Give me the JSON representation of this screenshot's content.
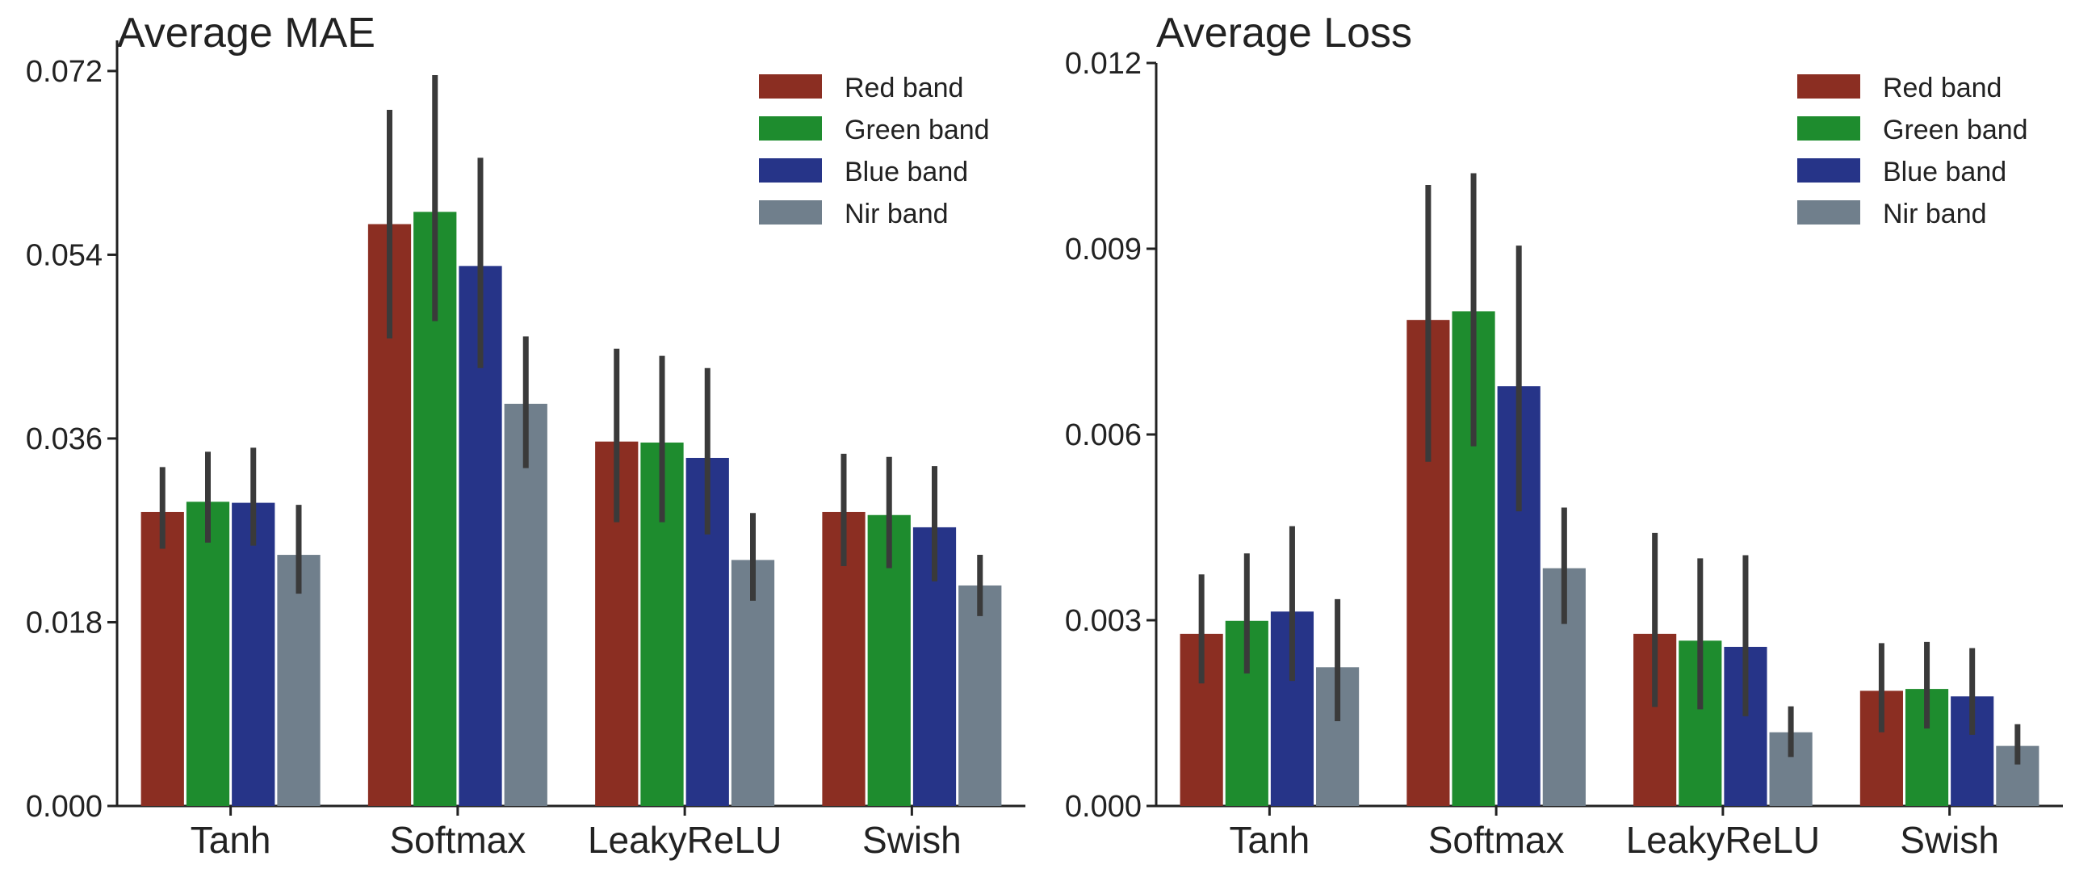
{
  "chart_data": [
    {
      "type": "bar",
      "title": "Average MAE",
      "xlabel": "",
      "ylabel": "",
      "ylim": [
        0,
        0.075
      ],
      "yticks": [
        "0.000",
        "0.018",
        "0.036",
        "0.054",
        "0.072"
      ],
      "ytick_values": [
        0,
        0.018,
        0.036,
        0.054,
        0.072
      ],
      "categories": [
        "Tanh",
        "Softmax",
        "LeakyReLU",
        "Swish"
      ],
      "legend_position": "top-right",
      "series": [
        {
          "name": "Red band",
          "color": "#8B2E22",
          "values": [
            0.0288,
            0.057,
            0.0357,
            0.0288
          ],
          "err_low": [
            0.0252,
            0.0458,
            0.0278,
            0.0235
          ],
          "err_high": [
            0.0332,
            0.0682,
            0.0448,
            0.0345
          ]
        },
        {
          "name": "Green band",
          "color": "#1E8C2E",
          "values": [
            0.0298,
            0.0582,
            0.0356,
            0.0285
          ],
          "err_low": [
            0.0258,
            0.0475,
            0.0278,
            0.0233
          ],
          "err_high": [
            0.0347,
            0.0716,
            0.0441,
            0.0342
          ]
        },
        {
          "name": "Blue band",
          "color": "#263488",
          "values": [
            0.0297,
            0.0529,
            0.0341,
            0.0273
          ],
          "err_low": [
            0.0255,
            0.0429,
            0.0266,
            0.022
          ],
          "err_high": [
            0.0351,
            0.0635,
            0.0429,
            0.0333
          ]
        },
        {
          "name": "Nir band",
          "color": "#707F8C",
          "values": [
            0.0246,
            0.0394,
            0.0241,
            0.0216
          ],
          "err_low": [
            0.0208,
            0.0331,
            0.0201,
            0.0186
          ],
          "err_high": [
            0.0295,
            0.046,
            0.0287,
            0.0246
          ]
        }
      ]
    },
    {
      "type": "bar",
      "title": "Average Loss",
      "xlabel": "",
      "ylabel": "",
      "ylim": [
        0,
        0.012
      ],
      "yticks": [
        "0.000",
        "0.003",
        "0.006",
        "0.009",
        "0.012"
      ],
      "ytick_values": [
        0,
        0.003,
        0.006,
        0.009,
        0.012
      ],
      "categories": [
        "Tanh",
        "Softmax",
        "LeakyReLU",
        "Swish"
      ],
      "legend_position": "top-right",
      "series": [
        {
          "name": "Red band",
          "color": "#8B2E22",
          "values": [
            0.00278,
            0.00785,
            0.00278,
            0.00186
          ],
          "err_low": [
            0.00198,
            0.00556,
            0.0016,
            0.00119
          ],
          "err_high": [
            0.00374,
            0.01003,
            0.00441,
            0.00263
          ]
        },
        {
          "name": "Green band",
          "color": "#1E8C2E",
          "values": [
            0.00299,
            0.00799,
            0.00267,
            0.00189
          ],
          "err_low": [
            0.00214,
            0.00581,
            0.00156,
            0.00125
          ],
          "err_high": [
            0.00408,
            0.01022,
            0.004,
            0.00265
          ]
        },
        {
          "name": "Blue band",
          "color": "#263488",
          "values": [
            0.00314,
            0.00678,
            0.00257,
            0.00177
          ],
          "err_low": [
            0.00202,
            0.00476,
            0.00145,
            0.00115
          ],
          "err_high": [
            0.00452,
            0.00905,
            0.00405,
            0.00255
          ]
        },
        {
          "name": "Nir band",
          "color": "#707F8C",
          "values": [
            0.00224,
            0.00384,
            0.00119,
            0.00097
          ],
          "err_low": [
            0.00137,
            0.00294,
            0.00079,
            0.00067
          ],
          "err_high": [
            0.00334,
            0.00482,
            0.00161,
            0.00132
          ]
        }
      ]
    }
  ]
}
